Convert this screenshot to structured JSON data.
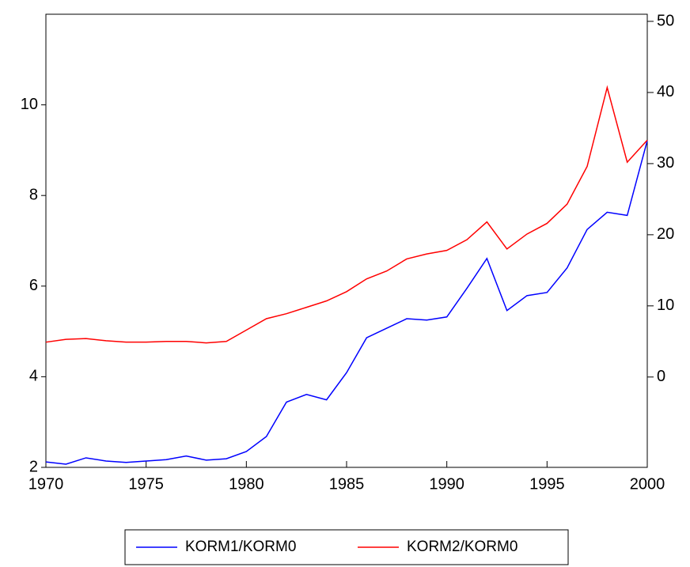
{
  "chart_data": {
    "type": "line",
    "x": [
      1970,
      1971,
      1972,
      1973,
      1974,
      1975,
      1976,
      1977,
      1978,
      1979,
      1980,
      1981,
      1982,
      1983,
      1984,
      1985,
      1986,
      1987,
      1988,
      1989,
      1990,
      1991,
      1992,
      1993,
      1994,
      1995,
      1996,
      1997,
      1998,
      1999,
      2000
    ],
    "xlim": [
      1970,
      2000
    ],
    "xticks": [
      1970,
      1975,
      1980,
      1985,
      1990,
      1995,
      2000
    ],
    "ylim": [
      2,
      12
    ],
    "yticks": [
      2,
      4,
      6,
      8,
      10
    ],
    "y2lim": [
      -12.7,
      51
    ],
    "y2ticks": [
      0,
      10,
      20,
      30,
      40,
      50
    ],
    "series": [
      {
        "name": "KORM1/KORM0",
        "color": "#0000ff",
        "values": [
          2.12,
          2.07,
          2.21,
          2.14,
          2.11,
          2.14,
          2.17,
          2.25,
          2.16,
          2.19,
          2.35,
          2.68,
          3.44,
          3.61,
          3.49,
          4.09,
          4.86,
          5.07,
          5.28,
          5.25,
          5.32,
          5.95,
          6.61,
          5.46,
          5.79,
          5.86,
          6.4,
          7.25,
          7.63,
          7.56,
          9.21
        ]
      },
      {
        "name": "KORM2/KORM0",
        "color": "#ff0000",
        "axis": "y2",
        "values": [
          4.9,
          5.3,
          5.4,
          5.1,
          4.9,
          4.9,
          5.0,
          5.0,
          4.8,
          5.0,
          6.6,
          8.2,
          8.9,
          9.8,
          10.7,
          12.0,
          13.8,
          14.9,
          16.6,
          17.3,
          17.8,
          19.3,
          21.8,
          18.0,
          20.1,
          21.6,
          24.3,
          29.6,
          40.7,
          30.2,
          33.3
        ]
      }
    ]
  }
}
